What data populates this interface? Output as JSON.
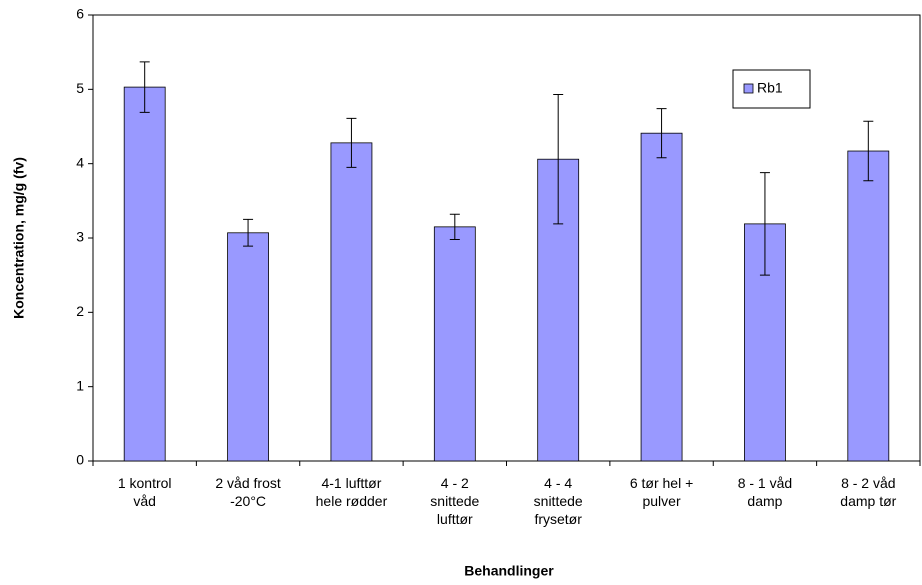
{
  "chart_data": {
    "type": "bar",
    "x_label": "Behandlinger",
    "y_label": "Koncentration, mg/g (fv)",
    "categories": [
      "1 kontrol\nvåd",
      "2 våd frost\n-20°C",
      "4-1 lufttør\nhele rødder",
      "4 - 2\nsnittede\nlufttør",
      "4 - 4\nsnittede\nfrysetør",
      "6 tør hel +\npulver",
      "8 - 1 våd\ndamp",
      "8 - 2 våd\ndamp tør"
    ],
    "series": [
      {
        "name": "Rb1",
        "color": "#9999ff",
        "values": [
          5.03,
          3.07,
          4.28,
          3.15,
          4.06,
          4.41,
          3.19,
          4.17
        ],
        "errors": [
          0.34,
          0.18,
          0.33,
          0.17,
          0.87,
          0.33,
          0.69,
          0.4
        ]
      }
    ],
    "ylim": [
      0,
      6
    ],
    "yticks": [
      0,
      1,
      2,
      3,
      4,
      5,
      6
    ],
    "legend": "upper-right"
  }
}
